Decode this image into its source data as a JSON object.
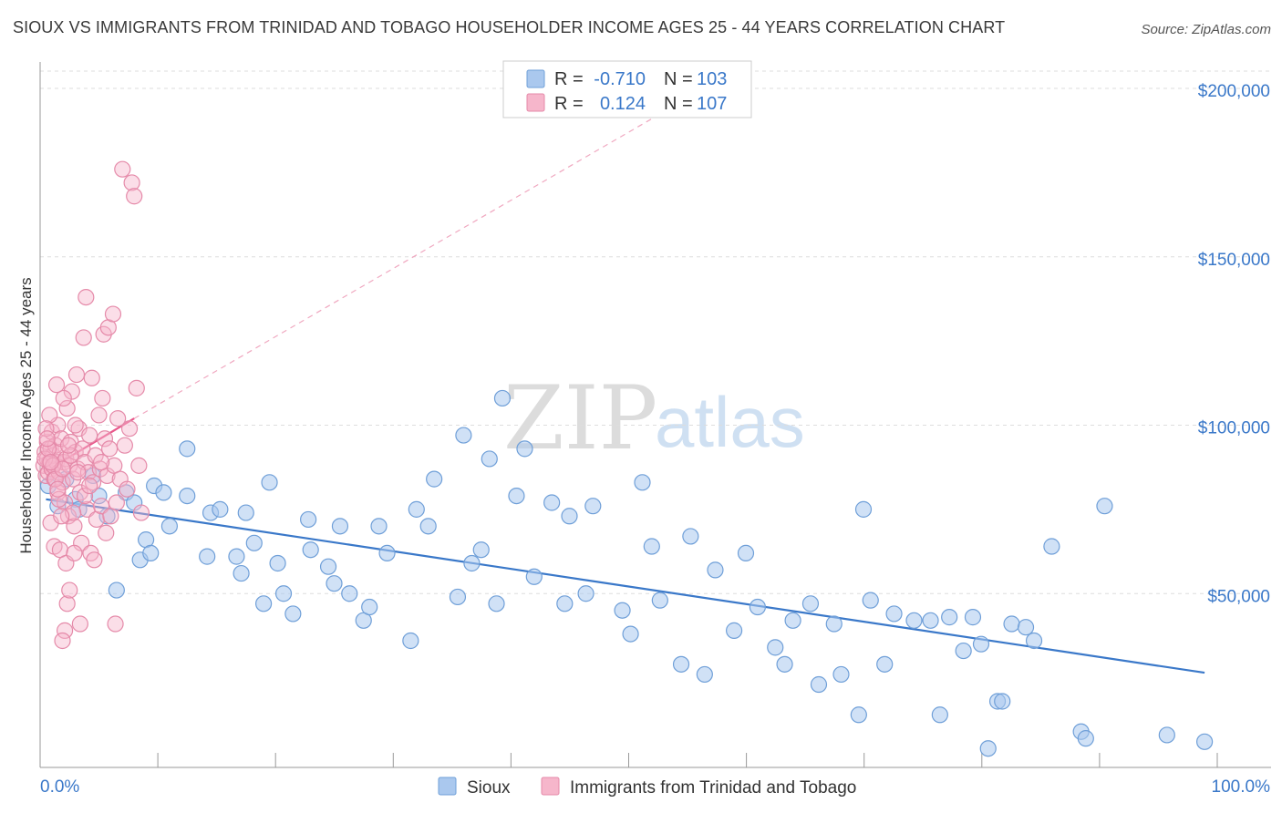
{
  "title": "SIOUX VS IMMIGRANTS FROM TRINIDAD AND TOBAGO HOUSEHOLDER INCOME AGES 25 - 44 YEARS CORRELATION CHART",
  "source": "Source: ZipAtlas.com",
  "watermark": {
    "zip": "ZIP",
    "atlas": "atlas"
  },
  "colors": {
    "blue": "#3a78c9",
    "blue_fill": "#aac8ee",
    "pink": "#e8578a",
    "pink_fill": "#f6b6cb",
    "grid": "#dddddd"
  },
  "legend": {
    "rows": [
      {
        "r_label": "R = ",
        "r_value": "-0.710",
        "n_label": "N = ",
        "n_value": "103"
      },
      {
        "r_label": "R = ",
        "r_value": "0.124",
        "n_label": "N = ",
        "n_value": "107"
      }
    ]
  },
  "chart_data": {
    "type": "scatter",
    "xlabel": "",
    "ylabel": "Householder Income Ages 25 - 44 years",
    "xlim": [
      0,
      100
    ],
    "ylim": [
      0,
      210000
    ],
    "x_tick_labels": [
      "0.0%",
      "100.0%"
    ],
    "y_ticks": [
      50000,
      100000,
      150000,
      200000
    ],
    "y_tick_labels": [
      "$50,000",
      "$100,000",
      "$150,000",
      "$200,000"
    ],
    "grid": true,
    "series": [
      {
        "name": "Sioux",
        "r": -0.71,
        "n": 103,
        "trend": {
          "x0": 0.5,
          "y0": 78000,
          "x1": 99.0,
          "y1": 26500
        },
        "points": [
          [
            0.7,
            82000
          ],
          [
            1.5,
            76000
          ],
          [
            2.2,
            84000
          ],
          [
            3.0,
            78000
          ],
          [
            3.3,
            75000
          ],
          [
            4.5,
            85000
          ],
          [
            5.0,
            79000
          ],
          [
            5.7,
            73000
          ],
          [
            6.5,
            51000
          ],
          [
            7.3,
            80000
          ],
          [
            8.0,
            77000
          ],
          [
            8.5,
            60000
          ],
          [
            9.0,
            66000
          ],
          [
            9.4,
            62000
          ],
          [
            9.7,
            82000
          ],
          [
            10.5,
            80000
          ],
          [
            11.0,
            70000
          ],
          [
            12.5,
            79000
          ],
          [
            12.5,
            93000
          ],
          [
            14.2,
            61000
          ],
          [
            14.5,
            74000
          ],
          [
            15.3,
            75000
          ],
          [
            16.7,
            61000
          ],
          [
            17.1,
            56000
          ],
          [
            17.5,
            74000
          ],
          [
            18.2,
            65000
          ],
          [
            19.0,
            47000
          ],
          [
            19.5,
            83000
          ],
          [
            20.2,
            59000
          ],
          [
            20.7,
            50000
          ],
          [
            21.5,
            44000
          ],
          [
            22.8,
            72000
          ],
          [
            23.0,
            63000
          ],
          [
            24.5,
            58000
          ],
          [
            25.0,
            53000
          ],
          [
            25.5,
            70000
          ],
          [
            26.3,
            50000
          ],
          [
            27.5,
            42000
          ],
          [
            28.0,
            46000
          ],
          [
            28.8,
            70000
          ],
          [
            29.5,
            62000
          ],
          [
            31.5,
            36000
          ],
          [
            32.0,
            75000
          ],
          [
            33.0,
            70000
          ],
          [
            33.5,
            84000
          ],
          [
            35.5,
            49000
          ],
          [
            36.0,
            97000
          ],
          [
            36.7,
            59000
          ],
          [
            37.5,
            63000
          ],
          [
            38.2,
            90000
          ],
          [
            38.8,
            47000
          ],
          [
            39.3,
            108000
          ],
          [
            40.5,
            79000
          ],
          [
            41.2,
            93000
          ],
          [
            42.0,
            55000
          ],
          [
            43.5,
            77000
          ],
          [
            44.6,
            47000
          ],
          [
            45.0,
            73000
          ],
          [
            46.4,
            50000
          ],
          [
            47.0,
            76000
          ],
          [
            49.5,
            45000
          ],
          [
            50.2,
            38000
          ],
          [
            51.2,
            83000
          ],
          [
            52.0,
            64000
          ],
          [
            52.7,
            48000
          ],
          [
            54.5,
            29000
          ],
          [
            55.3,
            67000
          ],
          [
            56.5,
            26000
          ],
          [
            57.4,
            57000
          ],
          [
            59.0,
            39000
          ],
          [
            60.0,
            62000
          ],
          [
            61.0,
            46000
          ],
          [
            62.5,
            34000
          ],
          [
            63.3,
            29000
          ],
          [
            64.0,
            42000
          ],
          [
            65.5,
            47000
          ],
          [
            66.2,
            23000
          ],
          [
            67.5,
            41000
          ],
          [
            68.1,
            26000
          ],
          [
            69.6,
            14000
          ],
          [
            70.0,
            75000
          ],
          [
            70.6,
            48000
          ],
          [
            71.8,
            29000
          ],
          [
            72.6,
            44000
          ],
          [
            74.3,
            42000
          ],
          [
            75.7,
            42000
          ],
          [
            76.5,
            14000
          ],
          [
            77.3,
            43000
          ],
          [
            78.5,
            33000
          ],
          [
            79.3,
            43000
          ],
          [
            80.0,
            35000
          ],
          [
            80.6,
            4000
          ],
          [
            81.4,
            18000
          ],
          [
            81.8,
            18000
          ],
          [
            82.6,
            41000
          ],
          [
            83.8,
            40000
          ],
          [
            84.5,
            36000
          ],
          [
            86.0,
            64000
          ],
          [
            88.5,
            9000
          ],
          [
            88.9,
            7000
          ],
          [
            90.5,
            76000
          ],
          [
            95.8,
            8000
          ],
          [
            99.0,
            6000
          ]
        ]
      },
      {
        "name": "Immigrants from Trinidad and Tobago",
        "r": 0.124,
        "n": 107,
        "trend": {
          "x0": 0.3,
          "y0": 86000,
          "x1": 8.0,
          "y1": 102000
        },
        "trend_ext": {
          "x0": 8.0,
          "y0": 102000,
          "x1": 53.0,
          "y1": 193000
        },
        "points": [
          [
            0.3,
            88000
          ],
          [
            0.4,
            92000
          ],
          [
            0.5,
            85000
          ],
          [
            0.6,
            95000
          ],
          [
            0.6,
            90000
          ],
          [
            0.7,
            86000
          ],
          [
            0.8,
            89000
          ],
          [
            0.9,
            93000
          ],
          [
            1.0,
            87000
          ],
          [
            1.0,
            98000
          ],
          [
            1.1,
            91000
          ],
          [
            1.2,
            84000
          ],
          [
            1.3,
            94000
          ],
          [
            1.4,
            89000
          ],
          [
            1.5,
            80000
          ],
          [
            1.5,
            100000
          ],
          [
            1.6,
            86000
          ],
          [
            1.7,
            92000
          ],
          [
            1.8,
            96000
          ],
          [
            1.9,
            83000
          ],
          [
            2.0,
            89000
          ],
          [
            2.1,
            77000
          ],
          [
            2.2,
            90000
          ],
          [
            2.3,
            105000
          ],
          [
            2.4,
            73000
          ],
          [
            2.5,
            88000
          ],
          [
            2.6,
            95000
          ],
          [
            2.7,
            110000
          ],
          [
            2.8,
            84000
          ],
          [
            2.9,
            70000
          ],
          [
            3.0,
            92000
          ],
          [
            3.1,
            115000
          ],
          [
            3.2,
            87000
          ],
          [
            3.3,
            99000
          ],
          [
            3.4,
            80000
          ],
          [
            3.5,
            65000
          ],
          [
            3.6,
            93000
          ],
          [
            3.7,
            126000
          ],
          [
            3.8,
            89000
          ],
          [
            3.9,
            138000
          ],
          [
            4.0,
            75000
          ],
          [
            4.1,
            86000
          ],
          [
            4.2,
            97000
          ],
          [
            4.3,
            62000
          ],
          [
            4.4,
            114000
          ],
          [
            4.5,
            83000
          ],
          [
            4.6,
            60000
          ],
          [
            4.7,
            91000
          ],
          [
            4.8,
            72000
          ],
          [
            5.0,
            103000
          ],
          [
            5.1,
            87000
          ],
          [
            5.2,
            76000
          ],
          [
            5.3,
            108000
          ],
          [
            5.4,
            127000
          ],
          [
            5.5,
            96000
          ],
          [
            5.6,
            68000
          ],
          [
            5.7,
            85000
          ],
          [
            5.8,
            129000
          ],
          [
            5.9,
            93000
          ],
          [
            6.0,
            73000
          ],
          [
            6.2,
            133000
          ],
          [
            6.3,
            88000
          ],
          [
            6.4,
            41000
          ],
          [
            6.5,
            77000
          ],
          [
            6.6,
            102000
          ],
          [
            6.8,
            84000
          ],
          [
            7.0,
            176000
          ],
          [
            7.2,
            94000
          ],
          [
            7.4,
            81000
          ],
          [
            7.6,
            99000
          ],
          [
            7.8,
            172000
          ],
          [
            8.0,
            168000
          ],
          [
            8.2,
            111000
          ],
          [
            8.4,
            88000
          ],
          [
            8.6,
            74000
          ],
          [
            2.3,
            47000
          ],
          [
            2.5,
            51000
          ],
          [
            2.1,
            39000
          ],
          [
            1.9,
            36000
          ],
          [
            3.4,
            41000
          ],
          [
            1.2,
            64000
          ],
          [
            0.9,
            71000
          ],
          [
            1.7,
            63000
          ],
          [
            2.2,
            59000
          ],
          [
            3.8,
            79000
          ],
          [
            4.2,
            82000
          ],
          [
            2.0,
            108000
          ],
          [
            1.4,
            112000
          ],
          [
            0.8,
            103000
          ],
          [
            0.5,
            99000
          ],
          [
            1.6,
            78000
          ],
          [
            2.8,
            74000
          ],
          [
            3.2,
            86000
          ],
          [
            0.4,
            90000
          ],
          [
            1.1,
            88000
          ],
          [
            2.6,
            91000
          ],
          [
            1.3,
            84000
          ],
          [
            0.7,
            93000
          ],
          [
            1.9,
            87000
          ],
          [
            0.6,
            96000
          ],
          [
            1.5,
            81000
          ],
          [
            2.4,
            94000
          ],
          [
            0.9,
            89000
          ],
          [
            3.0,
            100000
          ],
          [
            1.8,
            73000
          ],
          [
            2.9,
            62000
          ],
          [
            5.2,
            89000
          ]
        ]
      }
    ]
  }
}
